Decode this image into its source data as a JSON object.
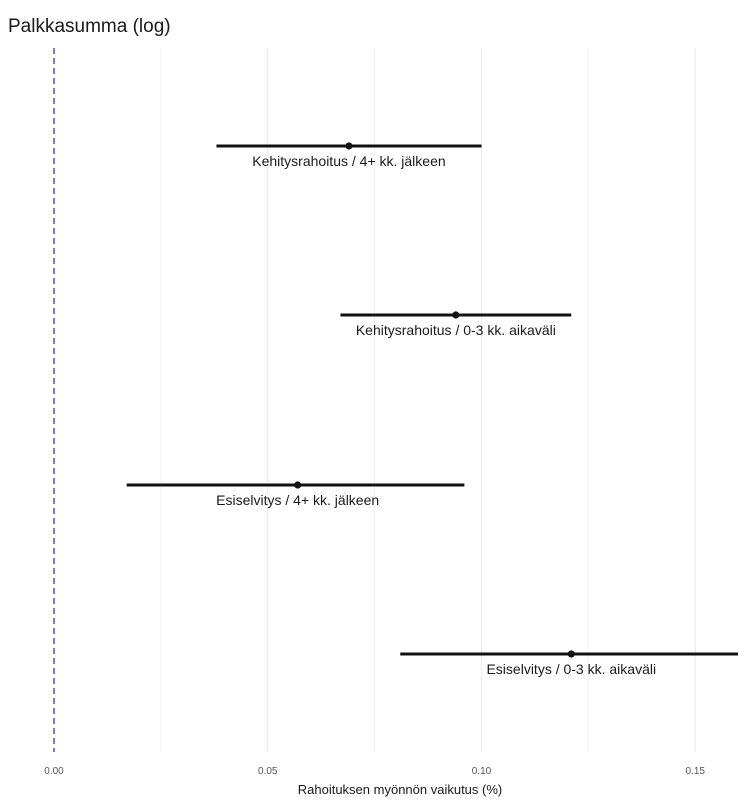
{
  "chart_data": {
    "type": "scatter",
    "title": "Palkkasumma (log)",
    "xlabel": "Rahoituksen myönnön vaikutus (%)",
    "ylabel": "",
    "xlim": [
      0.0,
      0.16
    ],
    "x_ticks": [
      0.0,
      0.05,
      0.1,
      0.15
    ],
    "x_tick_labels": [
      "0.00",
      "0.05",
      "0.10",
      "0.15"
    ],
    "reference_line": {
      "x": 0.0,
      "style": "dashed",
      "color": "#5b5bb8"
    },
    "grid": {
      "vertical": true,
      "horizontal": false,
      "color": "#ececec"
    },
    "estimates": [
      {
        "label": "Kehitysrahoitus / 4+ kk. jälkeen",
        "estimate": 0.069,
        "ci_low": 0.038,
        "ci_high": 0.1
      },
      {
        "label": "Kehitysrahoitus / 0-3 kk. aikaväli",
        "estimate": 0.094,
        "ci_low": 0.067,
        "ci_high": 0.121
      },
      {
        "label": "Esiselvitys / 4+ kk. jälkeen",
        "estimate": 0.057,
        "ci_low": 0.017,
        "ci_high": 0.096
      },
      {
        "label": "Esiselvitys / 0-3 kk. aikaväli",
        "estimate": 0.121,
        "ci_low": 0.081,
        "ci_high": 0.16
      }
    ],
    "colors": {
      "interval": "#111111",
      "point": "#111111",
      "text": "#1a1a1a"
    }
  }
}
